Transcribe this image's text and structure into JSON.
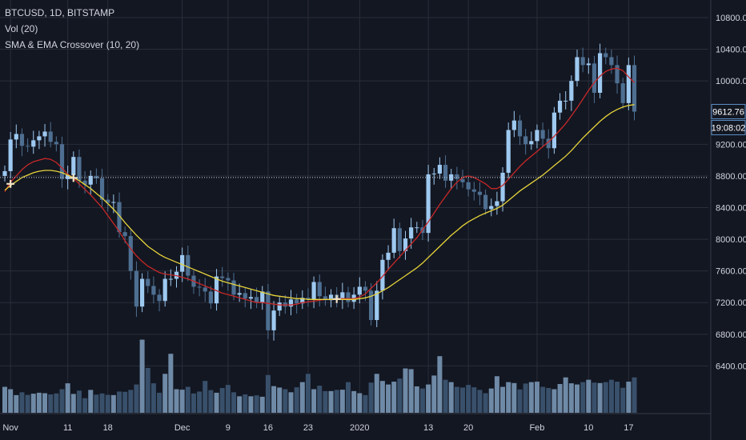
{
  "legend": {
    "symbol_line": "BTCUSD, 1D, BITSTAMP",
    "volume_line": "Vol (20)",
    "indicator_line": "SMA & EMA Crossover (10, 20)"
  },
  "colors": {
    "background": "#131722",
    "grid": "#2a2e39",
    "up": "#9ec9f0",
    "down": "#4e6f91",
    "volume_up": "#6f8aa6",
    "volume_down": "#39506b",
    "sma": "#c62828",
    "ema": "#e6d33a",
    "cross": "#f1e3c6",
    "price_label_bg": "#131722",
    "price_label_border": "#5c8fc7",
    "axis_text": "#d1d4dc",
    "crosshair": "#cfd3dc"
  },
  "chart_data": {
    "type": "candlestick",
    "title": "BTCUSD, 1D, BITSTAMP",
    "xlabel": "",
    "ylabel": "",
    "ylim": [
      6000,
      10900
    ],
    "grid": true,
    "y_ticks": [
      "10800.00",
      "10400.00",
      "10000.00",
      "9200.00",
      "8800.00",
      "8400.00",
      "8000.00",
      "7600.00",
      "7200.00",
      "6800.00",
      "6400.00"
    ],
    "x_ticks": [
      {
        "label": "Nov",
        "index": 1
      },
      {
        "label": "11",
        "index": 11
      },
      {
        "label": "18",
        "index": 18
      },
      {
        "label": "Dec",
        "index": 31
      },
      {
        "label": "9",
        "index": 39
      },
      {
        "label": "16",
        "index": 46
      },
      {
        "label": "23",
        "index": 53
      },
      {
        "label": "2020",
        "index": 62
      },
      {
        "label": "13",
        "index": 74
      },
      {
        "label": "20",
        "index": 81
      },
      {
        "label": "Feb",
        "index": 93
      },
      {
        "label": "10",
        "index": 102
      },
      {
        "label": "17",
        "index": 109
      }
    ],
    "last_price_label": "9612.76",
    "countdown_label": "19:08:02",
    "crosshair_price": 8780,
    "closes": [
      8860,
      9260,
      9330,
      9180,
      9170,
      9250,
      9300,
      9360,
      9230,
      9200,
      8760,
      8810,
      9040,
      8740,
      8690,
      8800,
      8770,
      8500,
      8460,
      8470,
      8090,
      8040,
      7600,
      7150,
      7500,
      7410,
      7300,
      7220,
      7500,
      7500,
      7590,
      7800,
      7540,
      7400,
      7390,
      7340,
      7190,
      7530,
      7510,
      7480,
      7300,
      7320,
      7250,
      7270,
      7200,
      7340,
      6850,
      7100,
      7200,
      7150,
      7240,
      7190,
      7260,
      7240,
      7460,
      7280,
      7230,
      7300,
      7250,
      7330,
      7210,
      7300,
      7400,
      7350,
      6980,
      7350,
      7740,
      7830,
      8140,
      7850,
      8010,
      8150,
      8150,
      8080,
      8820,
      8830,
      8940,
      8740,
      8820,
      8760,
      8720,
      8630,
      8600,
      8560,
      8380,
      8420,
      8480,
      8840,
      9380,
      9500,
      9300,
      9200,
      9240,
      9380,
      9270,
      9150,
      9600,
      9750,
      9750,
      10000,
      10300,
      10200,
      10220,
      9850,
      10350,
      10300,
      10200,
      9970,
      9720,
      10200,
      9612
    ],
    "sma_10": [
      8600,
      8720,
      8800,
      8880,
      8940,
      8980,
      9000,
      9020,
      9010,
      8970,
      8900,
      8820,
      8770,
      8700,
      8630,
      8560,
      8480,
      8400,
      8300,
      8200,
      8100,
      7980,
      7880,
      7790,
      7720,
      7660,
      7620,
      7580,
      7560,
      7550,
      7540,
      7520,
      7500,
      7470,
      7440,
      7410,
      7380,
      7350,
      7320,
      7300,
      7280,
      7260,
      7240,
      7220,
      7200,
      7200,
      7190,
      7180,
      7170,
      7170,
      7170,
      7180,
      7200,
      7210,
      7220,
      7230,
      7240,
      7240,
      7250,
      7250,
      7250,
      7250,
      7270,
      7310,
      7380,
      7450,
      7530,
      7620,
      7700,
      7780,
      7860,
      7940,
      8020,
      8120,
      8220,
      8330,
      8440,
      8540,
      8640,
      8720,
      8780,
      8800,
      8780,
      8740,
      8700,
      8640,
      8640,
      8680,
      8760,
      8840,
      8920,
      8990,
      9050,
      9110,
      9170,
      9230,
      9300,
      9380,
      9460,
      9560,
      9660,
      9770,
      9880,
      9980,
      10060,
      10120,
      10150,
      10160,
      10130,
      10050,
      9980
    ],
    "ema_20": [
      8620,
      8680,
      8730,
      8780,
      8810,
      8840,
      8860,
      8870,
      8870,
      8860,
      8840,
      8810,
      8780,
      8740,
      8690,
      8640,
      8580,
      8520,
      8450,
      8380,
      8300,
      8210,
      8130,
      8050,
      7980,
      7910,
      7860,
      7810,
      7770,
      7740,
      7710,
      7680,
      7650,
      7620,
      7590,
      7560,
      7530,
      7500,
      7470,
      7450,
      7430,
      7410,
      7390,
      7370,
      7350,
      7330,
      7310,
      7290,
      7280,
      7270,
      7260,
      7250,
      7250,
      7240,
      7240,
      7240,
      7240,
      7240,
      7240,
      7240,
      7240,
      7240,
      7250,
      7260,
      7280,
      7310,
      7350,
      7390,
      7440,
      7490,
      7540,
      7590,
      7640,
      7700,
      7770,
      7840,
      7910,
      7980,
      8050,
      8110,
      8170,
      8220,
      8260,
      8300,
      8330,
      8360,
      8390,
      8430,
      8490,
      8550,
      8610,
      8660,
      8710,
      8760,
      8810,
      8870,
      8930,
      8990,
      9050,
      9120,
      9200,
      9280,
      9350,
      9420,
      9490,
      9550,
      9600,
      9640,
      9670,
      9690,
      9700
    ],
    "volumes": [
      1100,
      1000,
      750,
      870,
      760,
      810,
      850,
      830,
      780,
      820,
      1000,
      1250,
      800,
      940,
      620,
      970,
      770,
      820,
      760,
      750,
      900,
      890,
      970,
      1200,
      3100,
      1900,
      1250,
      850,
      1650,
      2500,
      1000,
      980,
      1100,
      820,
      900,
      1350,
      960,
      850,
      1050,
      1180,
      870,
      700,
      780,
      700,
      740,
      680,
      1600,
      1130,
      1070,
      1000,
      870,
      1080,
      1300,
      1650,
      1000,
      1150,
      920,
      920,
      970,
      980,
      1300,
      920,
      830,
      750,
      1280,
      1650,
      1350,
      1200,
      1320,
      1450,
      1880,
      1850,
      1120,
      1030,
      1200,
      1580,
      2400,
      1400,
      1300,
      1100,
      1070,
      1180,
      1080,
      970,
      830,
      1030,
      1550,
      1100,
      1300,
      1260,
      990,
      1240,
      1300,
      1320,
      1100,
      1050,
      1000,
      1220,
      1500,
      1250,
      1200,
      1300,
      1400,
      1280,
      1260,
      1300,
      1400,
      1320,
      1060,
      1320,
      1500
    ]
  }
}
